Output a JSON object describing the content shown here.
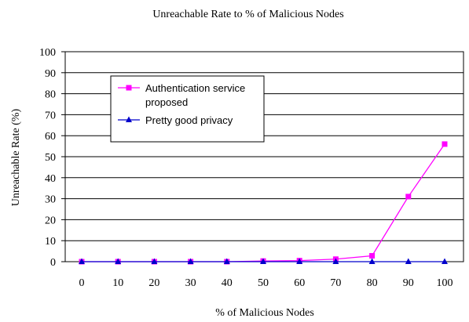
{
  "chart_data": {
    "type": "line",
    "title": "Unreachable Rate to % of Malicious Nodes",
    "xlabel": "% of Malicious Nodes",
    "ylabel": "Unreachable Rate (%)",
    "x": [
      0,
      10,
      20,
      30,
      40,
      50,
      60,
      70,
      80,
      90,
      100
    ],
    "x_ticks": [
      "0",
      "10",
      "20",
      "30",
      "40",
      "50",
      "60",
      "70",
      "80",
      "90",
      "100"
    ],
    "ylim": [
      0,
      100
    ],
    "y_ticks": [
      "0",
      "10",
      "20",
      "30",
      "40",
      "50",
      "60",
      "70",
      "80",
      "90",
      "100"
    ],
    "grid": "horizontal",
    "legend_position": "top-left inside",
    "series": [
      {
        "name": "Authentication service proposed",
        "legend_lines": [
          "Authentication service",
          "proposed"
        ],
        "color": "#ff00ff",
        "marker": "square",
        "values": [
          0,
          0,
          0,
          0,
          0,
          0.3,
          0.5,
          1.2,
          2.8,
          31,
          56
        ]
      },
      {
        "name": "Pretty good privacy",
        "legend_lines": [
          "Pretty good privacy"
        ],
        "color": "#0000cc",
        "marker": "triangle",
        "values": [
          0,
          0,
          0,
          0,
          0,
          0,
          0,
          0,
          0,
          0,
          0
        ]
      }
    ]
  }
}
